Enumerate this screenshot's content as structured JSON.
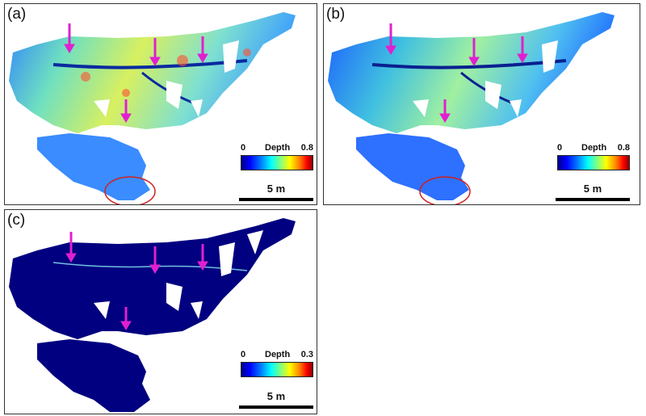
{
  "panels": [
    {
      "label": "(a)",
      "colorbar": {
        "title": "Depth",
        "min": "0",
        "max": "0.8"
      },
      "scale": "5 m"
    },
    {
      "label": "(b)",
      "colorbar": {
        "title": "Depth",
        "min": "0",
        "max": "0.8"
      },
      "scale": "5 m"
    },
    {
      "label": "(c)",
      "colorbar": {
        "title": "Depth",
        "min": "0",
        "max": "0.3"
      },
      "scale": "5 m"
    }
  ],
  "colors": {
    "arrow": "#e020d0",
    "circle": "#d02020",
    "deep_blue": "#000080",
    "colormap": [
      "#00008b",
      "#0000ff",
      "#0080ff",
      "#00ffff",
      "#80ff80",
      "#ffff00",
      "#ff8000",
      "#ff0000",
      "#8b0000"
    ]
  }
}
